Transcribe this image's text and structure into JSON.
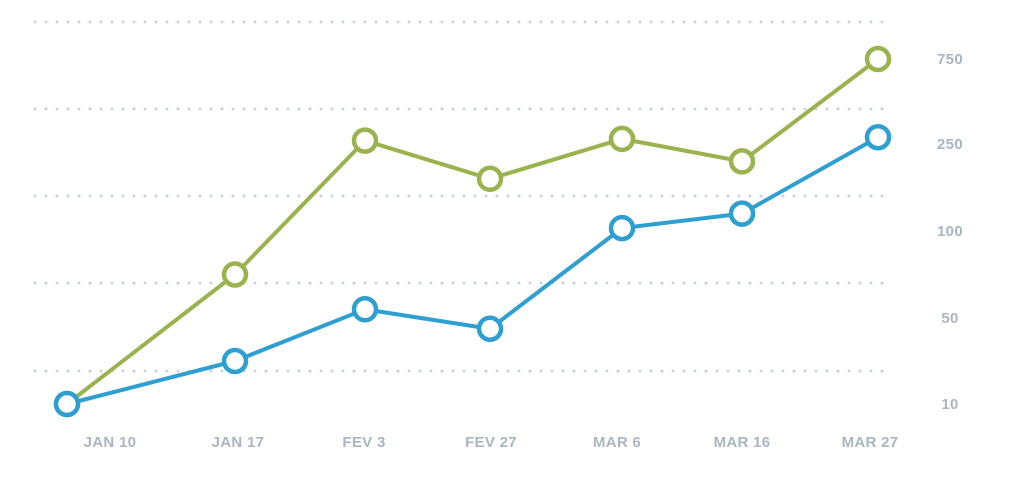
{
  "chart_data": {
    "type": "line",
    "categories": [
      "JAN 10",
      "JAN 17",
      "FEV 3",
      "FEV 27",
      "MAR 6",
      "MAR 16",
      "MAR 27"
    ],
    "y_ticks": [
      "750",
      "250",
      "100",
      "50",
      "10"
    ],
    "y_scale": "ordinal-bands",
    "y_axis_position": "right",
    "grid": "horizontal-dotted",
    "legend": "none",
    "series": [
      {
        "color": "#9bb34e",
        "values": [
          10,
          75,
          270,
          190,
          280,
          220,
          750
        ]
      },
      {
        "color": "#2d9fd0",
        "values": [
          10,
          30,
          55,
          45,
          105,
          130,
          290
        ]
      }
    ]
  }
}
